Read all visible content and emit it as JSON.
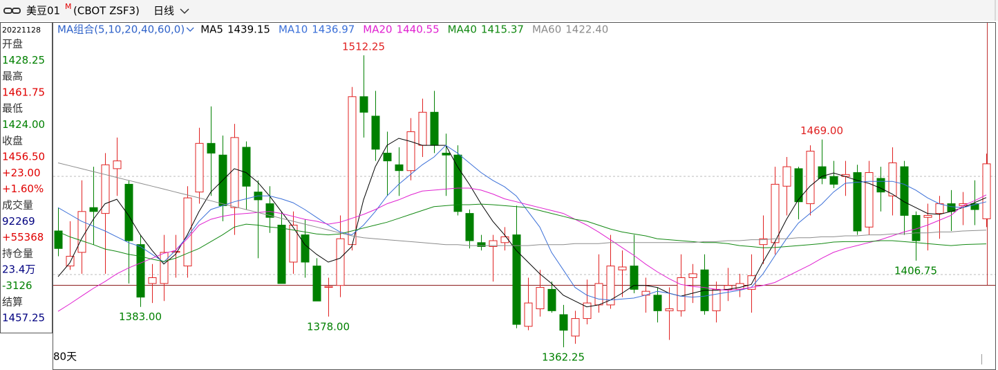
{
  "toolbar": {
    "symbol": "美豆01",
    "symbol_mark": "M",
    "contract": "(CBOT ZSF3)",
    "period": "日线"
  },
  "info_panel": {
    "date": "20221128",
    "lines": [
      {
        "text": "开盘",
        "color": "#333333"
      },
      {
        "text": "1428.25",
        "color": "#008000"
      },
      {
        "text": "最高",
        "color": "#333333"
      },
      {
        "text": "1461.75",
        "color": "#e00000"
      },
      {
        "text": "最低",
        "color": "#333333"
      },
      {
        "text": "1424.00",
        "color": "#008000"
      },
      {
        "text": "收盘",
        "color": "#333333"
      },
      {
        "text": "1456.50",
        "color": "#e00000"
      },
      {
        "text": "+23.00",
        "color": "#e00000"
      },
      {
        "text": "+1.60%",
        "color": "#e00000"
      },
      {
        "text": "成交量",
        "color": "#333333"
      },
      {
        "text": "92269",
        "color": "#000080"
      },
      {
        "text": "+55368",
        "color": "#e00000"
      },
      {
        "text": "持仓量",
        "color": "#333333"
      },
      {
        "text": "23.4万",
        "color": "#000080"
      },
      {
        "text": "-3126",
        "color": "#008000"
      },
      {
        "text": "结算",
        "color": "#333333"
      },
      {
        "text": "1457.25",
        "color": "#000080"
      }
    ]
  },
  "chart_data": {
    "type": "candlestick",
    "legend_title": "MA组合(5,10,20,40,60,0)",
    "legend_title_color": "#2f62c9",
    "span_label": "80天",
    "up_color": "#e02020",
    "down_color": "#008000",
    "ylim": [
      1353.4,
      1529.3
    ],
    "open": [
      1422,
      1404,
      1411,
      1434,
      1431,
      1454,
      1446,
      1415,
      1395,
      1395,
      1411,
      1404,
      1442,
      1467,
      1461,
      1434,
      1465,
      1442,
      1436,
      1425,
      1406,
      1420,
      1404,
      1393,
      1394,
      1415,
      1491,
      1481,
      1462,
      1456,
      1453,
      1466,
      1483,
      1462,
      1461,
      1431,
      1416,
      1414,
      1416,
      1420,
      1373,
      1382,
      1392,
      1379,
      1368,
      1377,
      1384,
      1384,
      1402,
      1404,
      1389,
      1389,
      1381,
      1381,
      1398,
      1402,
      1381,
      1392,
      1392,
      1392,
      1415,
      1416,
      1445,
      1454,
      1436,
      1455,
      1450,
      1450,
      1452,
      1424,
      1449,
      1440,
      1455,
      1430,
      1429,
      1431,
      1436,
      1435,
      1436,
      1428.25
    ],
    "high": [
      1434,
      1427,
      1448,
      1455,
      1462,
      1470,
      1448,
      1420,
      1405,
      1420,
      1420,
      1445,
      1475,
      1486,
      1471,
      1477,
      1468,
      1448,
      1445,
      1432,
      1432,
      1428,
      1408,
      1398,
      1430,
      1496,
      1512.25,
      1494,
      1473,
      1465,
      1480,
      1490,
      1494,
      1472,
      1466,
      1433,
      1420,
      1420,
      1424,
      1435,
      1398,
      1402,
      1396,
      1384,
      1381,
      1397,
      1410,
      1420,
      1412,
      1420,
      1398,
      1393,
      1393,
      1410,
      1405,
      1410,
      1396,
      1403,
      1400,
      1410,
      1430,
      1455,
      1460,
      1455,
      1466,
      1469,
      1458,
      1458,
      1456,
      1458,
      1455,
      1465,
      1458,
      1432,
      1436,
      1440,
      1443,
      1442,
      1448,
      1461.75
    ],
    "low": [
      1409,
      1402,
      1400,
      1415,
      1400,
      1440,
      1395,
      1383,
      1385,
      1386,
      1398,
      1398,
      1436,
      1440,
      1427,
      1420,
      1433,
      1408,
      1421,
      1395,
      1400,
      1398,
      1386,
      1378,
      1388,
      1412,
      1470,
      1458,
      1440,
      1440,
      1448,
      1460,
      1462,
      1440,
      1430,
      1413,
      1412,
      1396,
      1412,
      1372,
      1371,
      1378,
      1380,
      1362.25,
      1364,
      1374,
      1380,
      1382,
      1388,
      1390,
      1380,
      1375,
      1366,
      1378,
      1385,
      1379,
      1375,
      1386,
      1388,
      1380,
      1405,
      1410,
      1430,
      1428,
      1430,
      1446,
      1444,
      1440,
      1420,
      1420,
      1432,
      1430,
      1420,
      1406.75,
      1412,
      1418,
      1422,
      1425,
      1425,
      1424
    ],
    "close": [
      1413,
      1409,
      1432,
      1432,
      1456,
      1458,
      1417,
      1388,
      1398,
      1411,
      1411.5,
      1439,
      1467,
      1462,
      1435,
      1470,
      1445,
      1438,
      1429,
      1395,
      1425,
      1406,
      1386,
      1393.5,
      1418,
      1491,
      1483,
      1464,
      1458,
      1453,
      1473,
      1483,
      1466,
      1461,
      1432,
      1417,
      1414,
      1417,
      1419,
      1374,
      1385,
      1393,
      1381,
      1371,
      1377,
      1385,
      1395,
      1404,
      1403.5,
      1392,
      1391,
      1381,
      1382,
      1398,
      1400,
      1381,
      1392,
      1394,
      1395,
      1399,
      1418,
      1446,
      1455,
      1437,
      1463,
      1449,
      1446,
      1451,
      1422,
      1452,
      1442,
      1457,
      1430,
      1417,
      1430,
      1436,
      1432,
      1436,
      1433,
      1456.5
    ],
    "high_labels": [
      null,
      null,
      null,
      null,
      null,
      null,
      null,
      null,
      null,
      null,
      null,
      null,
      null,
      null,
      null,
      null,
      null,
      null,
      null,
      null,
      null,
      null,
      null,
      null,
      null,
      null,
      "1512.25",
      null,
      null,
      null,
      null,
      null,
      null,
      null,
      null,
      null,
      null,
      null,
      null,
      null,
      null,
      null,
      null,
      null,
      null,
      null,
      null,
      null,
      null,
      null,
      null,
      null,
      null,
      null,
      null,
      null,
      null,
      null,
      null,
      null,
      null,
      null,
      null,
      null,
      null,
      "1469.00",
      null,
      null,
      null,
      null,
      null,
      null,
      null,
      null,
      null,
      null,
      null,
      null,
      null,
      null
    ],
    "low_labels": [
      null,
      null,
      null,
      null,
      null,
      null,
      null,
      "1383.00",
      null,
      null,
      null,
      null,
      null,
      null,
      null,
      null,
      null,
      null,
      null,
      null,
      null,
      null,
      null,
      "1378.00",
      null,
      null,
      null,
      null,
      null,
      null,
      null,
      null,
      null,
      null,
      null,
      null,
      null,
      null,
      null,
      null,
      null,
      null,
      null,
      "1362.25",
      null,
      null,
      null,
      null,
      null,
      null,
      null,
      null,
      null,
      null,
      null,
      null,
      null,
      null,
      null,
      null,
      null,
      null,
      null,
      null,
      null,
      null,
      null,
      null,
      null,
      null,
      null,
      null,
      null,
      "1406.75",
      null,
      null,
      null,
      null,
      null,
      null
    ],
    "series": [
      {
        "name": "MA5",
        "legend_value": "1439.15",
        "color": "#000000",
        "values": [
          1398.5,
          1405.6,
          1418,
          1428,
          1436,
          1438.3,
          1430,
          1420,
          1412,
          1405,
          1410,
          1420,
          1432,
          1442,
          1448,
          1454,
          1452,
          1447,
          1440,
          1432,
          1424,
          1415,
          1410,
          1406,
          1408,
          1414,
          1438,
          1455,
          1466,
          1469.6,
          1468,
          1466,
          1466,
          1466,
          1455,
          1446,
          1436,
          1427,
          1420,
          1412,
          1406,
          1400,
          1395,
          1389,
          1386,
          1383,
          1384,
          1386.5,
          1390,
          1394,
          1394,
          1393,
          1390,
          1388.5,
          1390,
          1391.5,
          1391.5,
          1392,
          1393,
          1394.5,
          1406,
          1416.3,
          1428,
          1438,
          1445,
          1450,
          1451.8,
          1450,
          1448,
          1446.5,
          1444,
          1441,
          1437,
          1434,
          1431,
          1430.5,
          1432,
          1434,
          1436.5,
          1439.15
        ]
      },
      {
        "name": "MA10",
        "legend_value": "1436.97",
        "color": "#3a6fd8",
        "values": [
          1434,
          1430.5,
          1427,
          1424.5,
          1422,
          1419,
          1416,
          1414,
          1410,
          1406,
          1412,
          1419,
          1427,
          1433,
          1435,
          1437,
          1438.5,
          1440,
          1440,
          1438.5,
          1436.5,
          1433,
          1429,
          1425,
          1421.5,
          1420,
          1425,
          1432,
          1440,
          1446,
          1451,
          1456,
          1460,
          1466,
          1462,
          1457,
          1452,
          1448,
          1444.7,
          1440,
          1432,
          1424,
          1411,
          1402,
          1393,
          1389,
          1387,
          1386.5,
          1387,
          1387.5,
          1389,
          1391,
          1390,
          1388.5,
          1388,
          1388.5,
          1389.5,
          1390.5,
          1391.5,
          1393,
          1400,
          1409.2,
          1418,
          1426,
          1431,
          1435.8,
          1442,
          1446.5,
          1447,
          1447.5,
          1447.5,
          1447.5,
          1446,
          1443,
          1439,
          1436,
          1434.5,
          1434,
          1435.5,
          1436.97
        ]
      },
      {
        "name": "MA20",
        "legend_value": "1440.55",
        "color": "#e020d0",
        "values": [
          1380.7,
          1384.5,
          1388.5,
          1392.5,
          1396,
          1400,
          1403,
          1405.5,
          1408,
          1410.5,
          1412,
          1418,
          1425,
          1428,
          1429.5,
          1430.5,
          1431,
          1431.5,
          1432,
          1431,
          1429.5,
          1428,
          1427,
          1425.5,
          1426.5,
          1428.5,
          1430.5,
          1433,
          1436,
          1438,
          1440.5,
          1442.5,
          1443,
          1443.5,
          1444,
          1444,
          1443,
          1441,
          1438.5,
          1437,
          1435.5,
          1434,
          1432.5,
          1431,
          1428,
          1425,
          1421.5,
          1417.5,
          1413.5,
          1409.5,
          1405,
          1401,
          1397.5,
          1394.5,
          1393.5,
          1393,
          1392,
          1391.5,
          1392,
          1393,
          1394,
          1395.5,
          1398.5,
          1401.5,
          1404.5,
          1408,
          1411,
          1413,
          1414.5,
          1416,
          1417.5,
          1419.5,
          1421.5,
          1423,
          1425,
          1427.5,
          1430,
          1435,
          1437.5,
          1440.55
        ]
      },
      {
        "name": "MA40",
        "legend_value": "1415.37",
        "color": "#118811",
        "values": [
          1421.6,
          1419,
          1417,
          1415,
          1412.7,
          1411.5,
          1410,
          1409,
          1407.5,
          1406.3,
          1408,
          1410.5,
          1413,
          1416.5,
          1420,
          1424,
          1425.5,
          1425,
          1424,
          1423.5,
          1422.5,
          1421.5,
          1420.5,
          1420,
          1420.5,
          1422,
          1423.5,
          1425,
          1426.5,
          1428.5,
          1430.5,
          1432.5,
          1434.5,
          1435,
          1435.5,
          1435.5,
          1435.8,
          1435.5,
          1435,
          1434.5,
          1434,
          1432.5,
          1431,
          1429.5,
          1428,
          1427,
          1425,
          1423,
          1421.5,
          1420.5,
          1419.5,
          1418,
          1417.5,
          1417,
          1416.5,
          1416,
          1416,
          1415.5,
          1414.5,
          1414,
          1413.4,
          1413.5,
          1414,
          1414.5,
          1415,
          1415.5,
          1416.3,
          1416.5,
          1416.5,
          1416.5,
          1417,
          1417,
          1416.5,
          1416,
          1415.5,
          1415,
          1414.5,
          1415,
          1415.2,
          1415.37
        ]
      },
      {
        "name": "MA60",
        "legend_value": "1422.40",
        "color": "#8c8c8c",
        "values": [
          1457,
          1455.5,
          1454,
          1452.5,
          1451,
          1449.5,
          1448,
          1446.5,
          1445,
          1443.5,
          1442,
          1440.5,
          1439,
          1437.5,
          1436,
          1434.5,
          1433,
          1431.5,
          1430,
          1428.5,
          1427,
          1425.5,
          1424,
          1422.5,
          1421,
          1419.5,
          1418.5,
          1418,
          1417.5,
          1417,
          1416.5,
          1416,
          1415.5,
          1415,
          1415,
          1414.5,
          1414.5,
          1414.5,
          1414.5,
          1414.5,
          1414.5,
          1415,
          1415,
          1415,
          1415.5,
          1415.5,
          1415.5,
          1416,
          1416,
          1416,
          1416,
          1416,
          1416,
          1416,
          1416,
          1416.5,
          1416.5,
          1417,
          1417,
          1417.5,
          1417.5,
          1418,
          1418,
          1418.5,
          1418.5,
          1419,
          1419,
          1419.5,
          1419.5,
          1420,
          1420,
          1420.5,
          1420.5,
          1421,
          1421,
          1421.5,
          1421.5,
          1422,
          1422.2,
          1422.4
        ]
      }
    ]
  }
}
